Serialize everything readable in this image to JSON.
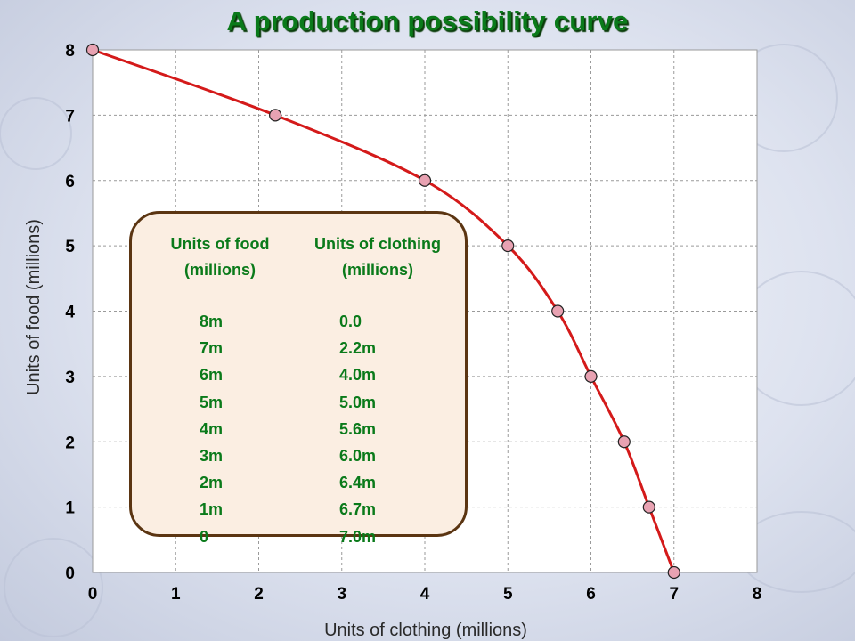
{
  "chart_data": {
    "type": "line",
    "title": "A production possibility curve",
    "xlabel": "Units of clothing (millions)",
    "ylabel": "Units of food (millions)",
    "xlim": [
      0,
      8
    ],
    "ylim": [
      0,
      8
    ],
    "x_ticks": [
      "0",
      "1",
      "2",
      "3",
      "4",
      "5",
      "6",
      "7",
      "8"
    ],
    "y_ticks": [
      "0",
      "1",
      "2",
      "3",
      "4",
      "5",
      "6",
      "7",
      "8"
    ],
    "grid": true,
    "series": [
      {
        "x": [
          0,
          2.2,
          4.0,
          5.0,
          5.6,
          6.0,
          6.4,
          6.7,
          7.0
        ],
        "y": [
          8,
          7,
          6,
          5,
          4,
          3,
          2,
          1,
          0
        ]
      }
    ],
    "line_color": "#d41a1a",
    "marker_color": "#e8a2b2"
  },
  "table": {
    "food_header": "Units of food (millions)",
    "clothing_header": "Units of clothing (millions)",
    "food_values": [
      "8m",
      "7m",
      "6m",
      "5m",
      "4m",
      "3m",
      "2m",
      "1m",
      "0"
    ],
    "clothing_values": [
      "0.0",
      "2.2m",
      "4.0m",
      "5.0m",
      "5.6m",
      "6.0m",
      "6.4m",
      "6.7m",
      "7.0m"
    ]
  }
}
